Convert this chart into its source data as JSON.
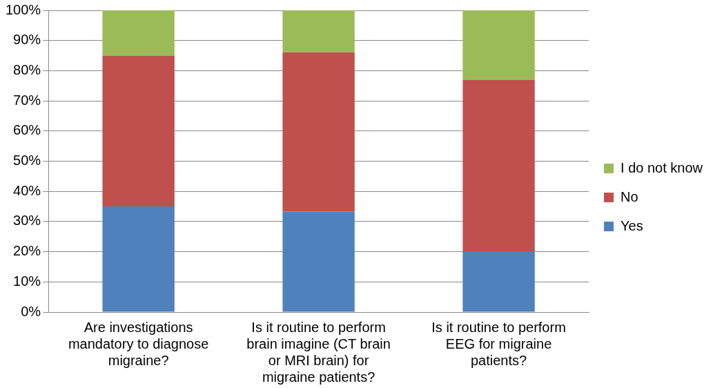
{
  "chart_data": {
    "type": "bar",
    "stacked": true,
    "categories": [
      "Are investigations mandatory to diagnose migraine?",
      "Is it routine to perform brain imagine (CT brain or MRI brain) for migraine patients?",
      "Is it routine to perform EEG for migraine patients?"
    ],
    "series": [
      {
        "name": "Yes",
        "color": "#4f81bd",
        "values": [
          35,
          33.3,
          20
        ]
      },
      {
        "name": "No",
        "color": "#c0504d",
        "values": [
          50,
          52.8,
          57
        ]
      },
      {
        "name": "I do not know",
        "color": "#9bbb59",
        "values": [
          15,
          13.9,
          23
        ]
      }
    ],
    "ylim": [
      0,
      100
    ],
    "yticks": [
      {
        "value": 0,
        "label": "0%"
      },
      {
        "value": 10,
        "label": "10%"
      },
      {
        "value": 20,
        "label": "20%"
      },
      {
        "value": 30,
        "label": "30%"
      },
      {
        "value": 40,
        "label": "40%"
      },
      {
        "value": 50,
        "label": "50%"
      },
      {
        "value": 60,
        "label": "60%"
      },
      {
        "value": 70,
        "label": "70%"
      },
      {
        "value": 80,
        "label": "80%"
      },
      {
        "value": 90,
        "label": "90%"
      },
      {
        "value": 100,
        "label": "100%"
      }
    ],
    "grid": "y",
    "legend": "right"
  }
}
